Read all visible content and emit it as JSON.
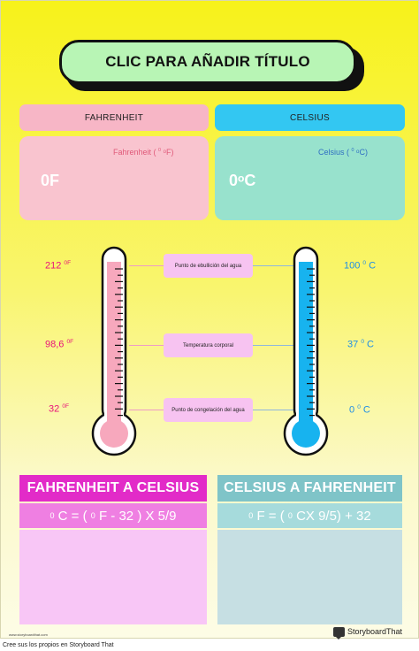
{
  "title": "CLIC PARA AÑADIR TÍTULO",
  "fahrenheit": {
    "header": "FAHRENHEIT",
    "unit_label_pre": "Fahrenheit (",
    "unit_label_sup": "0",
    "unit_label_post": "ᵒF)",
    "value": "0F"
  },
  "celsius": {
    "header": "CELSIUS",
    "unit_label_pre": "Celsius (",
    "unit_label_sup": "0",
    "unit_label_post": "ᵒC)",
    "value": "0ᵒC"
  },
  "scale": {
    "left": [
      {
        "num": "212",
        "sup": "0F"
      },
      {
        "num": "98,6",
        "sup": "0F"
      },
      {
        "num": "32",
        "sup": "0F"
      }
    ],
    "right": [
      {
        "num": "100",
        "sup": "0",
        "unit": "C"
      },
      {
        "num": "37",
        "sup": "0",
        "unit": "C"
      },
      {
        "num": "0",
        "sup": "0",
        "unit": "C"
      }
    ],
    "labels": [
      "Punto de ebullición del agua",
      "Temperatura corporal",
      "Punto de congelación del agua"
    ]
  },
  "conversions": {
    "f_to_c": {
      "title": "FAHRENHEIT A CELSIUS",
      "f_sup1": "0",
      "f_mid": "C = (",
      "f_sup2": "0",
      "f_end": "F - 32 ) X 5/9"
    },
    "c_to_f": {
      "title": "CELSIUS A FAHRENHEIT",
      "f_sup1": "0",
      "f_mid": "F = (",
      "f_sup2": "0",
      "f_end": "CX 9/5) + 32"
    }
  },
  "credit_small": "www.storyboardthat.com",
  "brand": "StoryboardThat",
  "footer": "Cree sus los propios en Storyboard That",
  "colors": {
    "pink_thermo": "#f7a8bd",
    "blue_thermo": "#17b3ef"
  }
}
